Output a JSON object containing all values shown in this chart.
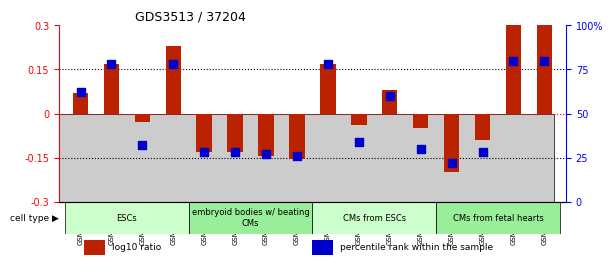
{
  "title": "GDS3513 / 37204",
  "samples": [
    "GSM348001",
    "GSM348002",
    "GSM348003",
    "GSM348004",
    "GSM348005",
    "GSM348006",
    "GSM348007",
    "GSM348008",
    "GSM348009",
    "GSM348010",
    "GSM348011",
    "GSM348012",
    "GSM348013",
    "GSM348014",
    "GSM348015",
    "GSM348016"
  ],
  "log10_ratio": [
    0.07,
    0.17,
    -0.03,
    0.23,
    -0.13,
    -0.13,
    -0.145,
    -0.155,
    0.17,
    -0.04,
    0.08,
    -0.05,
    -0.2,
    -0.09,
    0.3,
    0.3
  ],
  "percentile_rank": [
    62,
    78,
    32,
    78,
    28,
    28,
    27,
    26,
    78,
    34,
    60,
    30,
    22,
    28,
    80,
    80
  ],
  "bar_color": "#bb2200",
  "dot_color": "#0000cc",
  "ylim_left": [
    -0.3,
    0.3
  ],
  "ylim_right": [
    0,
    100
  ],
  "yticks_left": [
    -0.3,
    -0.15,
    0.0,
    0.15,
    0.3
  ],
  "ytick_labels_left": [
    "-0.3",
    "-0.15",
    "0",
    "0.15",
    "0.3"
  ],
  "yticks_right": [
    0,
    25,
    50,
    75,
    100
  ],
  "ytick_labels_right": [
    "0",
    "25",
    "50",
    "75",
    "100%"
  ],
  "cell_type_groups": [
    {
      "label": "ESCs",
      "start": 0,
      "end": 3
    },
    {
      "label": "embryoid bodies w/ beating\nCMs",
      "start": 4,
      "end": 7
    },
    {
      "label": "CMs from ESCs",
      "start": 8,
      "end": 11
    },
    {
      "label": "CMs from fetal hearts",
      "start": 12,
      "end": 15
    }
  ],
  "group_colors": [
    "#ccffcc",
    "#99ee99",
    "#ccffcc",
    "#99ee99"
  ],
  "cell_type_label": "cell type",
  "legend_items": [
    {
      "color": "#bb2200",
      "label": "log10 ratio"
    },
    {
      "color": "#0000cc",
      "label": "percentile rank within the sample"
    }
  ],
  "background_color": "#ffffff",
  "bar_width": 0.5,
  "dot_size": 30,
  "label_area_color": "#cccccc"
}
